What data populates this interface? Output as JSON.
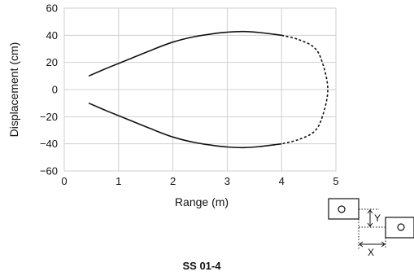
{
  "chart_data": {
    "type": "line",
    "title": "",
    "xlabel": "Range (m)",
    "ylabel": "Displacement (cm)",
    "xlim": [
      0,
      5
    ],
    "ylim": [
      -60,
      60
    ],
    "xticks": [
      "0",
      "1",
      "2",
      "3",
      "4",
      "5"
    ],
    "yticks": [
      "60",
      "40",
      "20",
      "0",
      "−20",
      "−40",
      "−60"
    ],
    "grid": true,
    "caption": "SS 01-4",
    "series": [
      {
        "style": "solid",
        "points": [
          [
            0.45,
            10
          ],
          [
            0.8,
            16
          ],
          [
            1.2,
            22.5
          ],
          [
            1.6,
            29
          ],
          [
            2.0,
            35
          ],
          [
            2.4,
            39
          ],
          [
            2.8,
            41.5
          ],
          [
            3.0,
            42.3
          ],
          [
            3.3,
            42.8
          ],
          [
            3.6,
            42
          ],
          [
            4.0,
            40
          ]
        ]
      },
      {
        "style": "solid",
        "points": [
          [
            0.45,
            -10
          ],
          [
            0.8,
            -16
          ],
          [
            1.2,
            -22.5
          ],
          [
            1.6,
            -29
          ],
          [
            2.0,
            -35
          ],
          [
            2.4,
            -39
          ],
          [
            2.8,
            -41.5
          ],
          [
            3.0,
            -42.3
          ],
          [
            3.3,
            -42.8
          ],
          [
            3.6,
            -42
          ],
          [
            4.0,
            -40
          ]
        ]
      },
      {
        "style": "dashed",
        "points": [
          [
            4.0,
            40
          ],
          [
            4.3,
            37
          ],
          [
            4.6,
            31
          ],
          [
            4.75,
            20
          ],
          [
            4.85,
            0
          ],
          [
            4.75,
            -20
          ],
          [
            4.6,
            -31
          ],
          [
            4.3,
            -37
          ],
          [
            4.0,
            -40
          ]
        ]
      }
    ],
    "inset_labels": {
      "y": "Y",
      "x": "X"
    }
  }
}
